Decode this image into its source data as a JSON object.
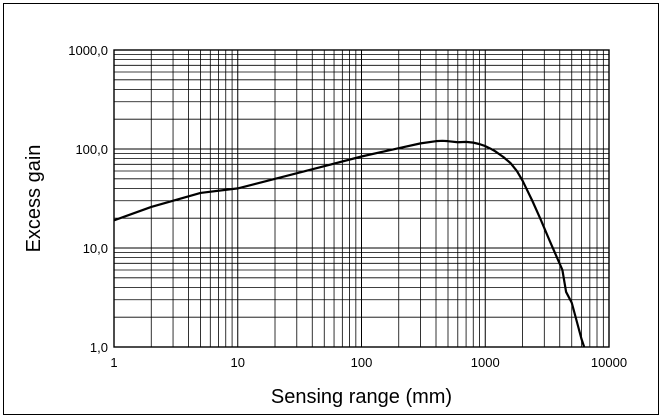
{
  "chart_data": {
    "type": "line",
    "xlabel": "Sensing range (mm)",
    "ylabel": "Excess gain",
    "x_scale": "log",
    "y_scale": "log",
    "xlim": [
      1,
      10000
    ],
    "ylim": [
      1,
      1000
    ],
    "grid": true,
    "x_ticks": [
      {
        "value": 1,
        "label": "1"
      },
      {
        "value": 10,
        "label": "10"
      },
      {
        "value": 100,
        "label": "100"
      },
      {
        "value": 1000,
        "label": "1000"
      },
      {
        "value": 10000,
        "label": "10000"
      }
    ],
    "y_ticks": [
      {
        "value": 1,
        "label": "1,0"
      },
      {
        "value": 10,
        "label": "10,0"
      },
      {
        "value": 100,
        "label": "100,0"
      },
      {
        "value": 1000,
        "label": "1000,0"
      }
    ],
    "line_color": "#000000",
    "series": [
      {
        "x": [
          1,
          2,
          5,
          10,
          50,
          100,
          200,
          300,
          400,
          450,
          500,
          600,
          700,
          800,
          900,
          1000,
          1100,
          1200,
          1400,
          1600,
          1800,
          2000,
          2400,
          2800,
          3300,
          3800,
          4200,
          4500,
          5000,
          5500,
          6000,
          6300
        ],
        "y": [
          19,
          26,
          36,
          40,
          67,
          84,
          102,
          114,
          120,
          121,
          120,
          117,
          118,
          116,
          112,
          107,
          101,
          95,
          83,
          72,
          60,
          48,
          30,
          19.5,
          12,
          8,
          6,
          3.6,
          2.8,
          1.8,
          1.2,
          1
        ]
      }
    ]
  }
}
